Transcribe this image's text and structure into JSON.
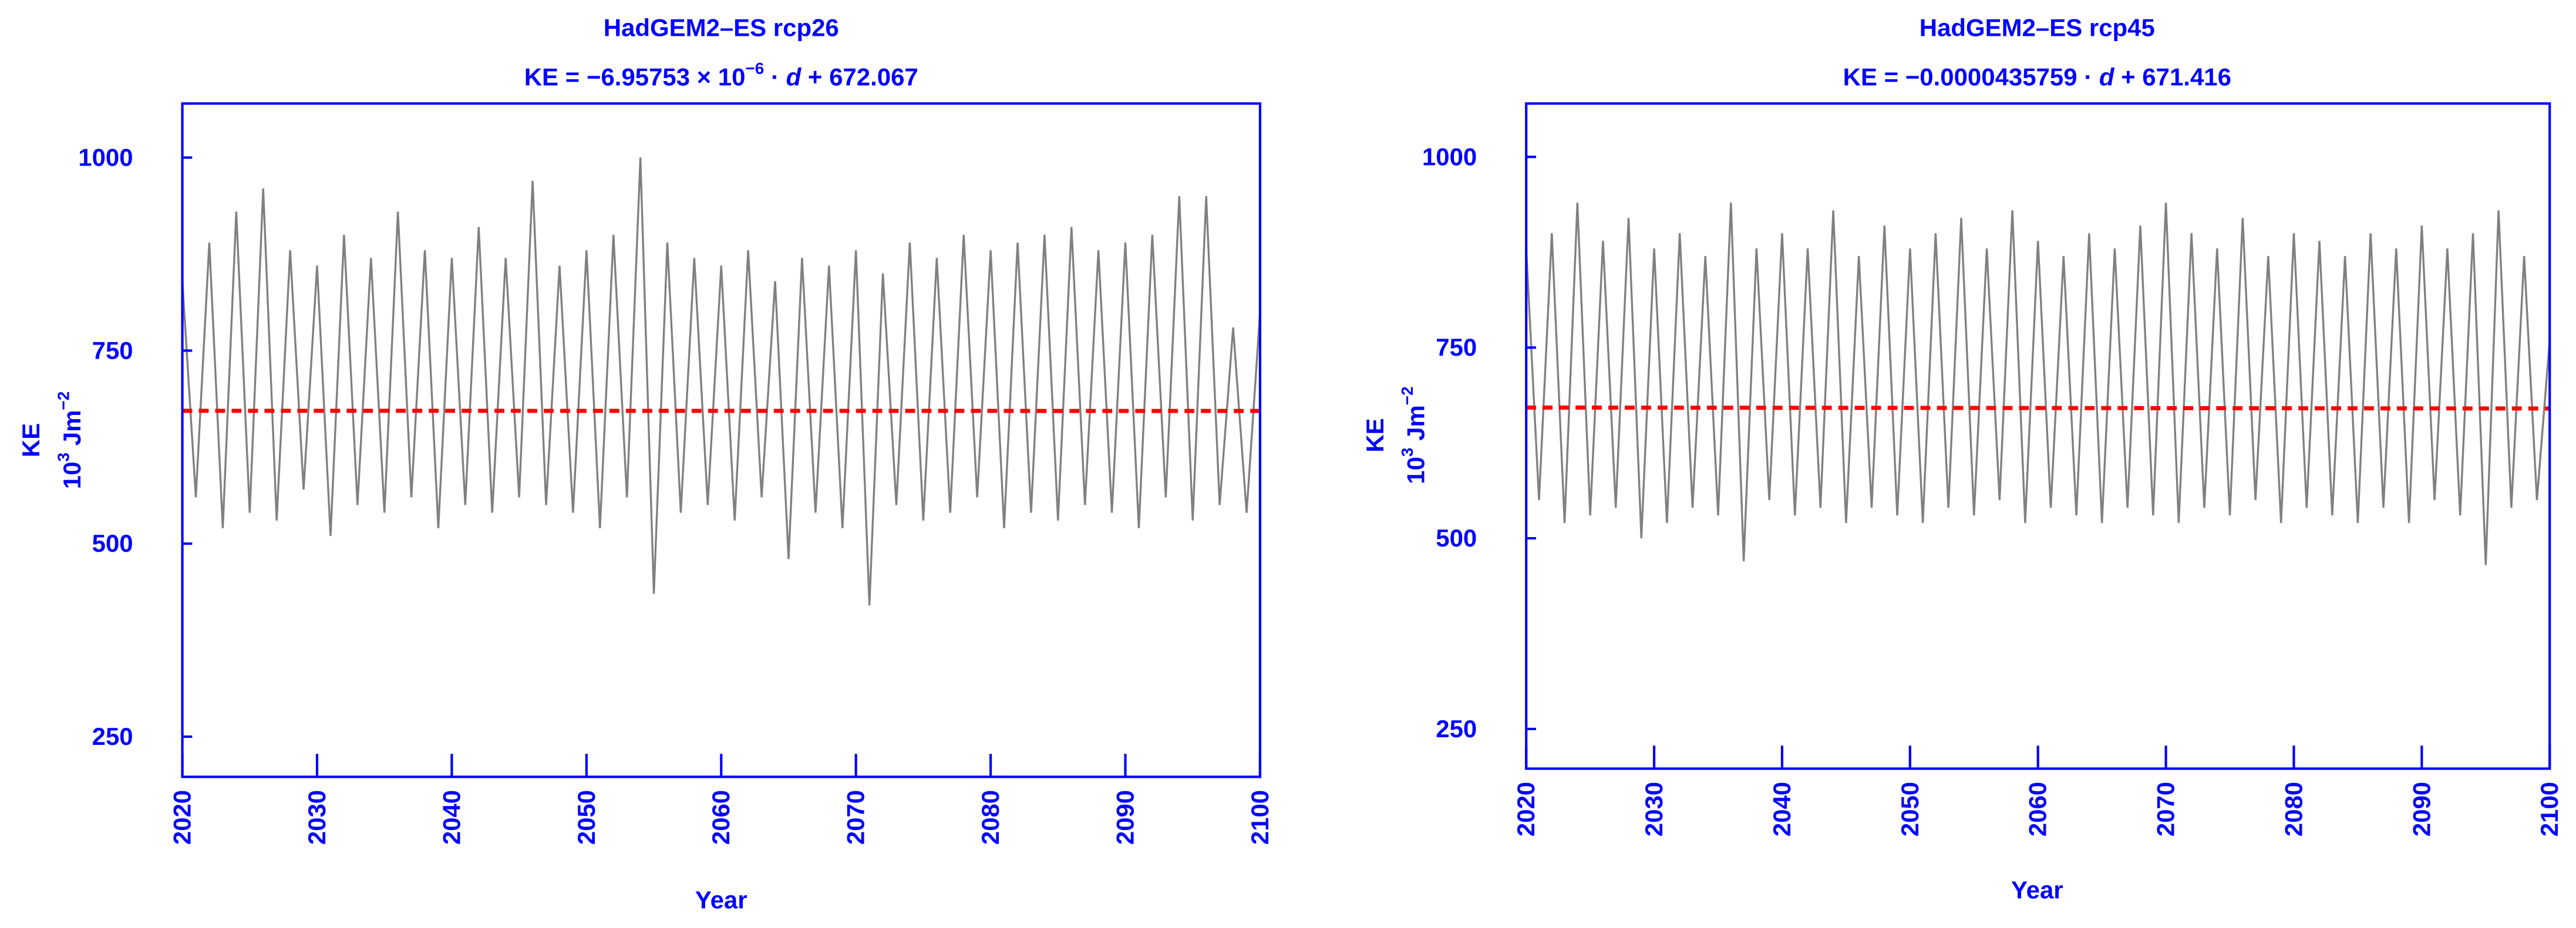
{
  "chart_data": [
    {
      "type": "line",
      "title": "HadGEM2–ES  rcp26",
      "subtitle": [
        "KE = −6.95753 × 10",
        "−6",
        " · ",
        "d",
        " + 672.067"
      ],
      "ylabel": {
        "line1": "KE",
        "parts": [
          "10",
          "3",
          " Jm",
          "−2"
        ]
      },
      "xlabel": "Year",
      "xlim": [
        2020,
        2100
      ],
      "xticks": [
        2020,
        2030,
        2040,
        2050,
        2060,
        2070,
        2080,
        2090,
        2100
      ],
      "ylim": [
        198,
        1070
      ],
      "yticks": [
        250,
        500,
        750,
        1000
      ],
      "series": [
        {
          "color": "#808080",
          "x": [
            2020,
            2021,
            2022,
            2023,
            2024,
            2025,
            2026,
            2027,
            2028,
            2029,
            2030,
            2031,
            2032,
            2033,
            2034,
            2035,
            2036,
            2037,
            2038,
            2039,
            2040,
            2041,
            2042,
            2043,
            2044,
            2045,
            2046,
            2047,
            2048,
            2049,
            2050,
            2051,
            2052,
            2053,
            2054,
            2055,
            2056,
            2057,
            2058,
            2059,
            2060,
            2061,
            2062,
            2063,
            2064,
            2065,
            2066,
            2067,
            2068,
            2069,
            2070,
            2071,
            2072,
            2073,
            2074,
            2075,
            2076,
            2077,
            2078,
            2079,
            2080,
            2081,
            2082,
            2083,
            2084,
            2085,
            2086,
            2087,
            2088,
            2089,
            2090,
            2091,
            2092,
            2093,
            2094,
            2095,
            2096,
            2097,
            2098,
            2099,
            2100
          ],
          "values": [
            840,
            560,
            890,
            520,
            930,
            540,
            960,
            530,
            880,
            570,
            860,
            510,
            900,
            550,
            870,
            540,
            930,
            560,
            880,
            520,
            870,
            550,
            910,
            540,
            870,
            560,
            970,
            550,
            860,
            540,
            880,
            520,
            900,
            560,
            1000,
            435,
            890,
            540,
            870,
            550,
            860,
            530,
            880,
            560,
            840,
            480,
            870,
            540,
            860,
            520,
            880,
            420,
            850,
            550,
            890,
            530,
            870,
            540,
            900,
            560,
            880,
            520,
            890,
            540,
            900,
            530,
            910,
            550,
            880,
            540,
            890,
            520,
            900,
            560,
            950,
            530,
            950,
            550,
            780,
            540,
            800
          ]
        },
        {
          "color": "#ff0000",
          "dashed": true,
          "x": [
            2020,
            2100
          ],
          "values": [
            672.067,
            671.864
          ]
        }
      ]
    },
    {
      "type": "line",
      "title": "HadGEM2–ES  rcp45",
      "subtitle": [
        "KE = −0.0000435759 · ",
        "d",
        " + 671.416"
      ],
      "ylabel": {
        "line1": "KE",
        "parts": [
          "10",
          "3",
          " Jm",
          "−2"
        ]
      },
      "xlabel": "Year",
      "xlim": [
        2020,
        2100
      ],
      "xticks": [
        2020,
        2030,
        2040,
        2050,
        2060,
        2070,
        2080,
        2090,
        2100
      ],
      "ylim": [
        198,
        1070
      ],
      "yticks": [
        250,
        500,
        750,
        1000
      ],
      "series": [
        {
          "color": "#808080",
          "x": [
            2020,
            2021,
            2022,
            2023,
            2024,
            2025,
            2026,
            2027,
            2028,
            2029,
            2030,
            2031,
            2032,
            2033,
            2034,
            2035,
            2036,
            2037,
            2038,
            2039,
            2040,
            2041,
            2042,
            2043,
            2044,
            2045,
            2046,
            2047,
            2048,
            2049,
            2050,
            2051,
            2052,
            2053,
            2054,
            2055,
            2056,
            2057,
            2058,
            2059,
            2060,
            2061,
            2062,
            2063,
            2064,
            2065,
            2066,
            2067,
            2068,
            2069,
            2070,
            2071,
            2072,
            2073,
            2074,
            2075,
            2076,
            2077,
            2078,
            2079,
            2080,
            2081,
            2082,
            2083,
            2084,
            2085,
            2086,
            2087,
            2088,
            2089,
            2090,
            2091,
            2092,
            2093,
            2094,
            2095,
            2096,
            2097,
            2098,
            2099,
            2100
          ],
          "values": [
            880,
            550,
            900,
            520,
            940,
            530,
            890,
            540,
            920,
            500,
            880,
            520,
            900,
            540,
            870,
            530,
            940,
            470,
            880,
            550,
            900,
            530,
            880,
            540,
            930,
            520,
            870,
            540,
            910,
            530,
            880,
            520,
            900,
            540,
            920,
            530,
            880,
            550,
            930,
            520,
            890,
            540,
            870,
            530,
            900,
            520,
            880,
            540,
            910,
            530,
            940,
            520,
            900,
            540,
            880,
            530,
            920,
            550,
            870,
            520,
            900,
            540,
            890,
            530,
            870,
            520,
            900,
            540,
            880,
            520,
            910,
            550,
            880,
            530,
            900,
            465,
            930,
            540,
            870,
            550,
            760
          ]
        },
        {
          "color": "#ff0000",
          "dashed": true,
          "x": [
            2020,
            2100
          ],
          "values": [
            671.416,
            670.144
          ]
        }
      ]
    }
  ]
}
